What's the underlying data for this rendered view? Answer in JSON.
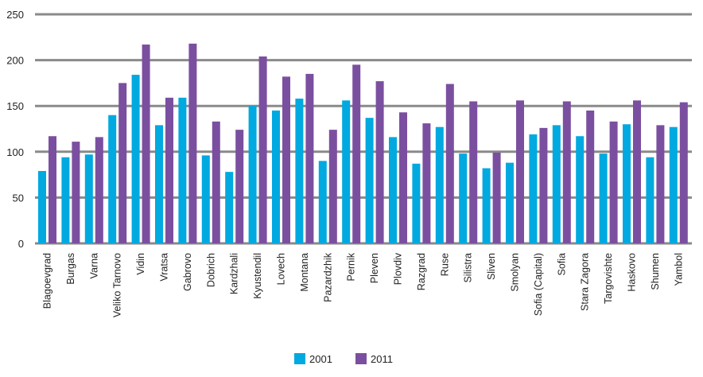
{
  "chart_data": {
    "type": "bar",
    "categories": [
      "Blagoevgrad",
      "Burgas",
      "Varna",
      "Veliko Tarnovo",
      "Vidin",
      "Vratsa",
      "Gabrovo",
      "Dobrich",
      "Kardzhali",
      "Kyustendil",
      "Lovech",
      "Montana",
      "Pazardzhik",
      "Pernik",
      "Pleven",
      "Plovdiv",
      "Razgrad",
      "Ruse",
      "Silistra",
      "Sliven",
      "Smolyan",
      "Sofia (Capital)",
      "Sofia",
      "Stara Zagora",
      "Targovishte",
      "Haskovo",
      "Shumen",
      "Yambol"
    ],
    "series": [
      {
        "name": "2001",
        "color": "#00a9e0",
        "values": [
          79,
          94,
          97,
          140,
          184,
          129,
          159,
          96,
          78,
          150,
          145,
          158,
          90,
          156,
          137,
          116,
          87,
          127,
          98,
          82,
          88,
          119,
          129,
          117,
          98,
          130,
          94,
          127
        ]
      },
      {
        "name": "2011",
        "color": "#7b4fa0",
        "values": [
          117,
          111,
          116,
          175,
          217,
          159,
          218,
          133,
          124,
          204,
          182,
          185,
          124,
          195,
          177,
          143,
          131,
          174,
          155,
          99,
          156,
          126,
          155,
          145,
          133,
          156,
          129,
          154
        ]
      }
    ],
    "yticks": [
      "0",
      "50",
      "100",
      "150",
      "200",
      "250"
    ],
    "ylim": [
      0,
      250
    ],
    "grid": true,
    "legend_position": "bottom-center",
    "title": "",
    "xlabel": "",
    "ylabel": ""
  }
}
